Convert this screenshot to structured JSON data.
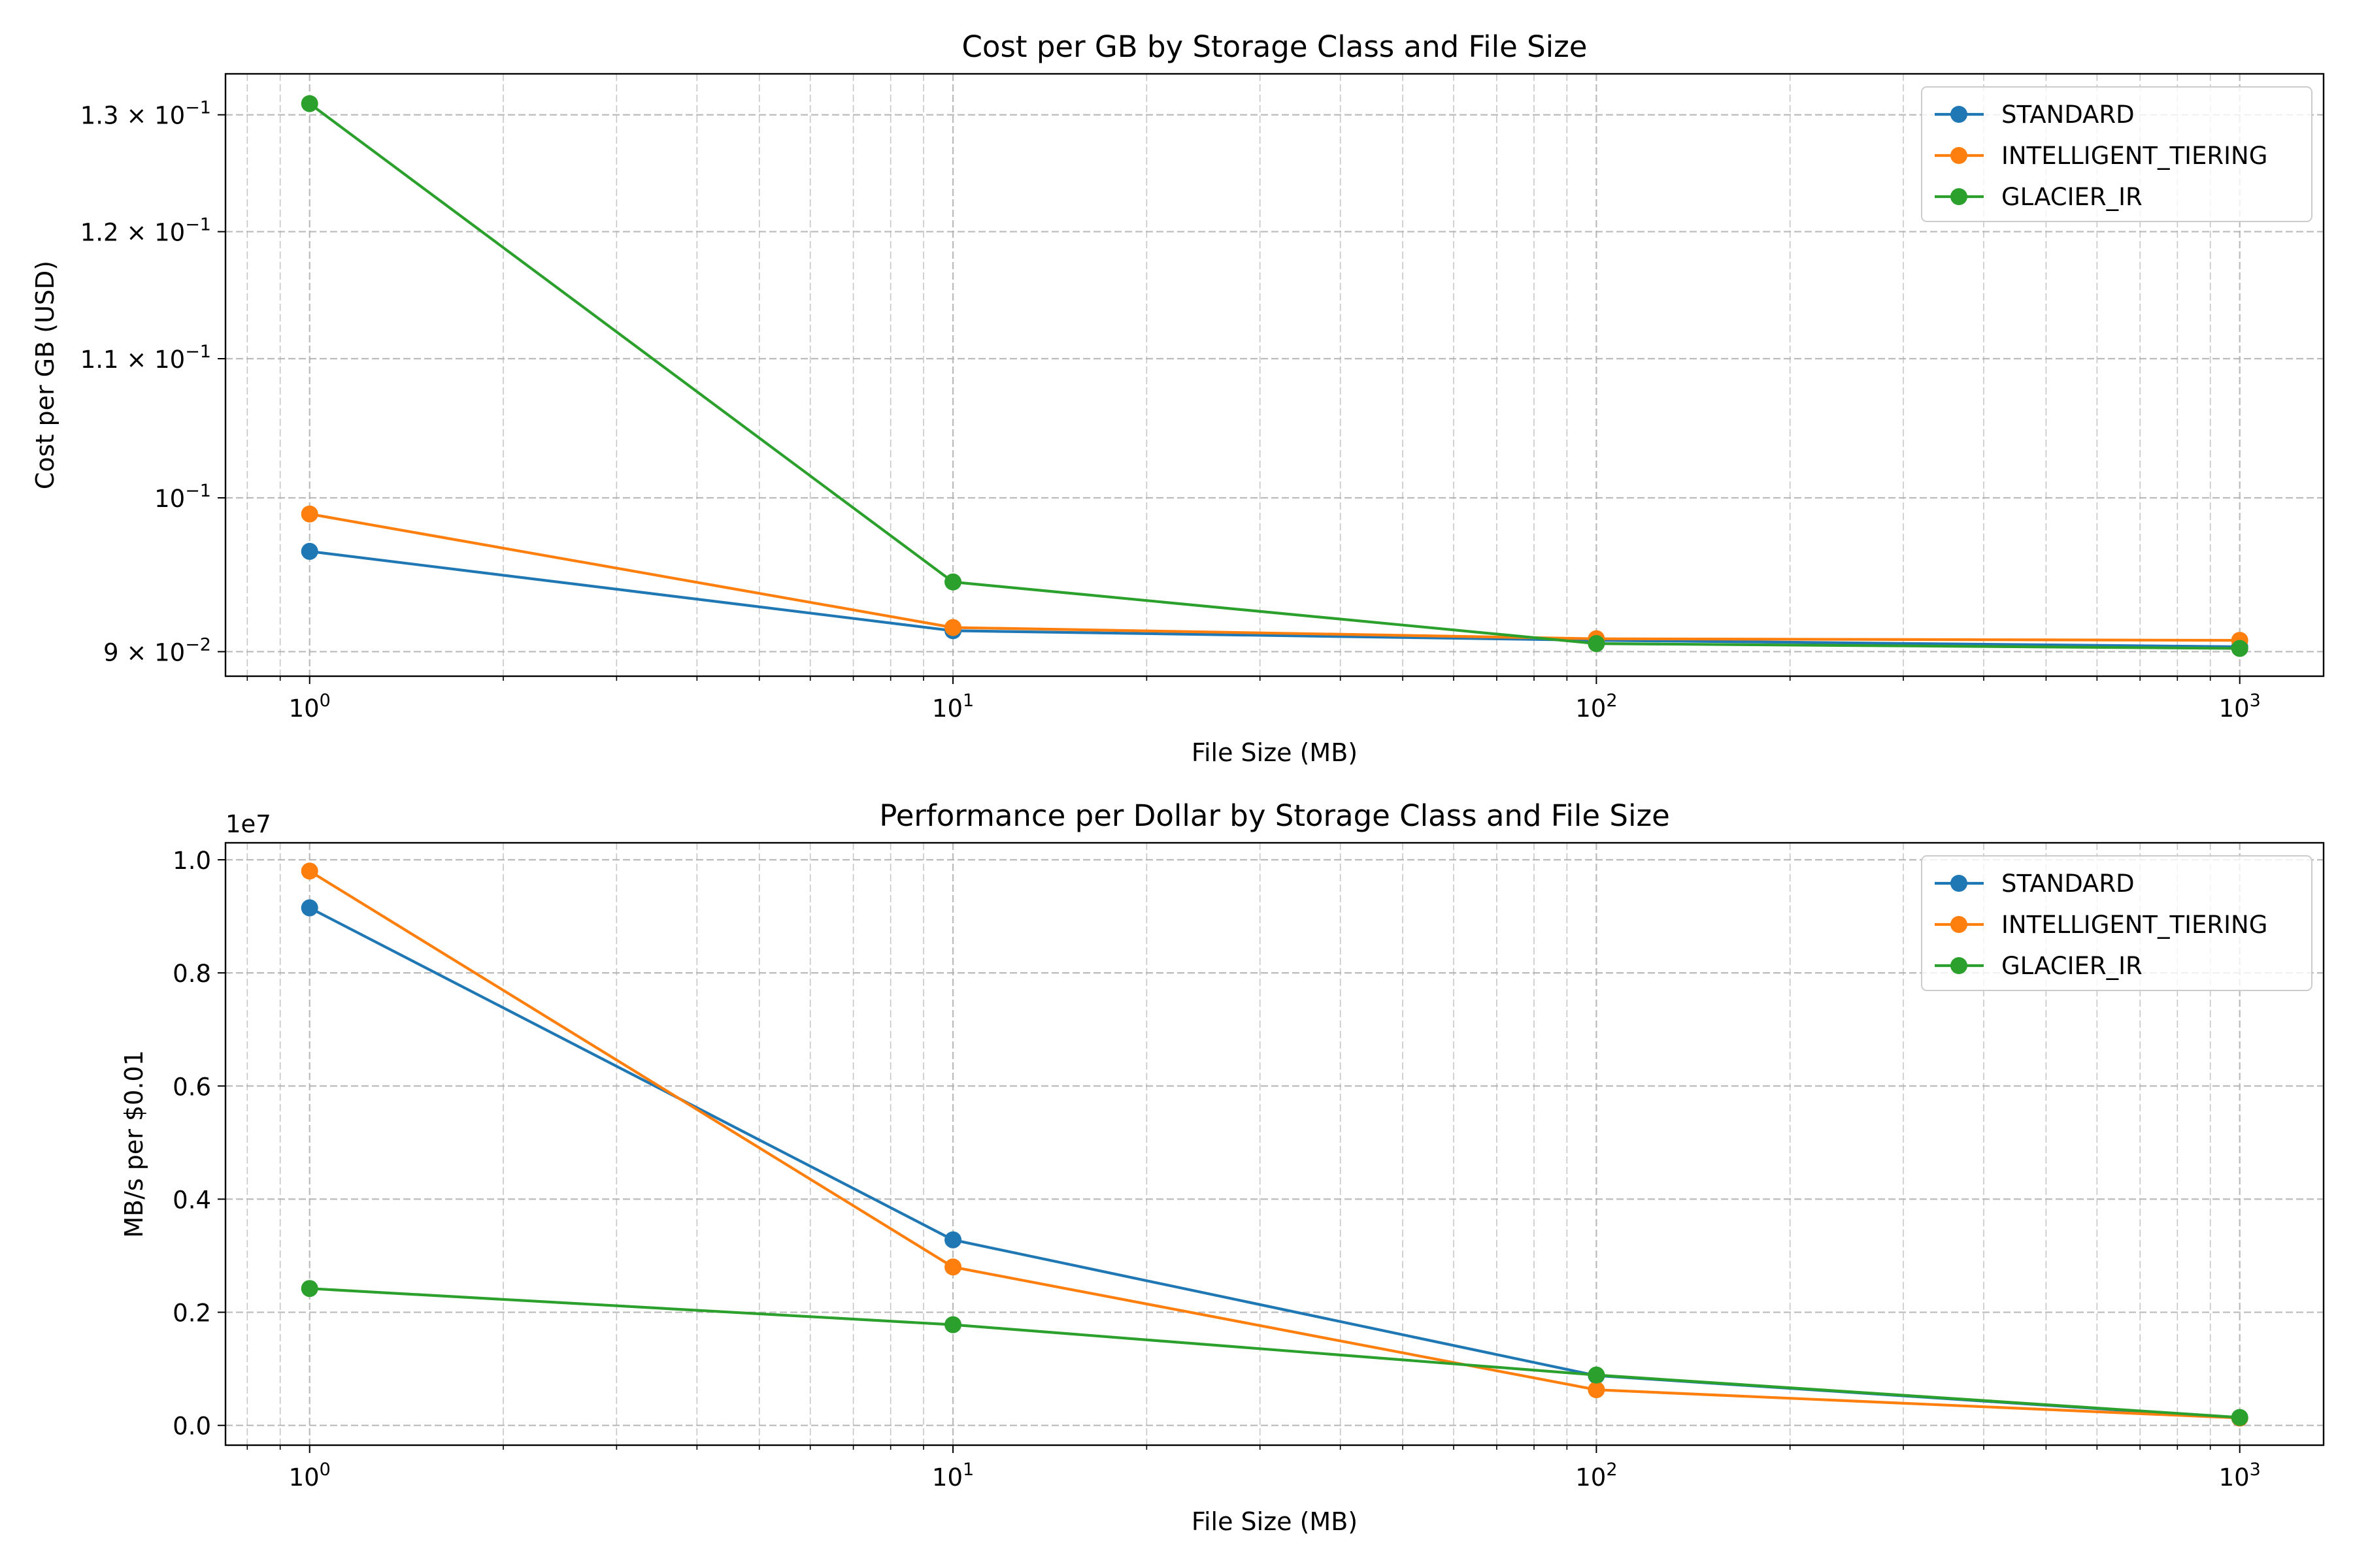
{
  "chart_data": [
    {
      "type": "line",
      "title": "Cost per GB by Storage Class and File Size",
      "xlabel": "File Size (MB)",
      "ylabel": "Cost per GB (USD)",
      "xscale": "log",
      "yscale": "log",
      "x": [
        1,
        10,
        100,
        1000
      ],
      "xlim": [
        0.74,
        1350
      ],
      "ylim": [
        0.0885,
        0.1337
      ],
      "xticks": [
        {
          "value": 1,
          "base": "10",
          "exp": "0"
        },
        {
          "value": 10,
          "base": "10",
          "exp": "1"
        },
        {
          "value": 100,
          "base": "10",
          "exp": "2"
        },
        {
          "value": 1000,
          "base": "10",
          "exp": "3"
        }
      ],
      "yticks": [
        {
          "value": 0.09,
          "mantissa": "9",
          "exp": "−2"
        },
        {
          "value": 0.1,
          "mantissa": "",
          "exp": "−1"
        },
        {
          "value": 0.11,
          "mantissa": "1.1",
          "exp": "−1"
        },
        {
          "value": 0.12,
          "mantissa": "1.2",
          "exp": "−1"
        },
        {
          "value": 0.13,
          "mantissa": "1.3",
          "exp": "−1"
        }
      ],
      "grid": true,
      "legend_position": "top-right",
      "series": [
        {
          "name": "STANDARD",
          "color": "#1f77b4",
          "values": [
            0.0964,
            0.0913,
            0.0907,
            0.0903
          ]
        },
        {
          "name": "INTELLIGENT_TIERING",
          "color": "#ff7f0e",
          "values": [
            0.0989,
            0.0915,
            0.0908,
            0.0907
          ]
        },
        {
          "name": "GLACIER_IR",
          "color": "#2ca02c",
          "values": [
            0.131,
            0.0944,
            0.0905,
            0.0902
          ]
        }
      ]
    },
    {
      "type": "line",
      "title": "Performance per Dollar by Storage Class and File Size",
      "xlabel": "File Size (MB)",
      "ylabel": "MB/s per $0.01",
      "offset_label": "1e7",
      "xscale": "log",
      "yscale": "linear",
      "x": [
        1,
        10,
        100,
        1000
      ],
      "xlim": [
        0.74,
        1350
      ],
      "ylim": [
        -0.035,
        1.03
      ],
      "xticks": [
        {
          "value": 1,
          "base": "10",
          "exp": "0"
        },
        {
          "value": 10,
          "base": "10",
          "exp": "1"
        },
        {
          "value": 100,
          "base": "10",
          "exp": "2"
        },
        {
          "value": 1000,
          "base": "10",
          "exp": "3"
        }
      ],
      "yticks": [
        {
          "value": 0.0,
          "label": "0.0"
        },
        {
          "value": 0.2,
          "label": "0.2"
        },
        {
          "value": 0.4,
          "label": "0.4"
        },
        {
          "value": 0.6,
          "label": "0.6"
        },
        {
          "value": 0.8,
          "label": "0.8"
        },
        {
          "value": 1.0,
          "label": "1.0"
        }
      ],
      "grid": true,
      "legend_position": "top-right",
      "series": [
        {
          "name": "STANDARD",
          "color": "#1f77b4",
          "values": [
            0.915,
            0.328,
            0.088,
            0.013
          ]
        },
        {
          "name": "INTELLIGENT_TIERING",
          "color": "#ff7f0e",
          "values": [
            0.98,
            0.28,
            0.063,
            0.013
          ]
        },
        {
          "name": "GLACIER_IR",
          "color": "#2ca02c",
          "values": [
            0.242,
            0.178,
            0.089,
            0.014
          ]
        }
      ]
    }
  ]
}
